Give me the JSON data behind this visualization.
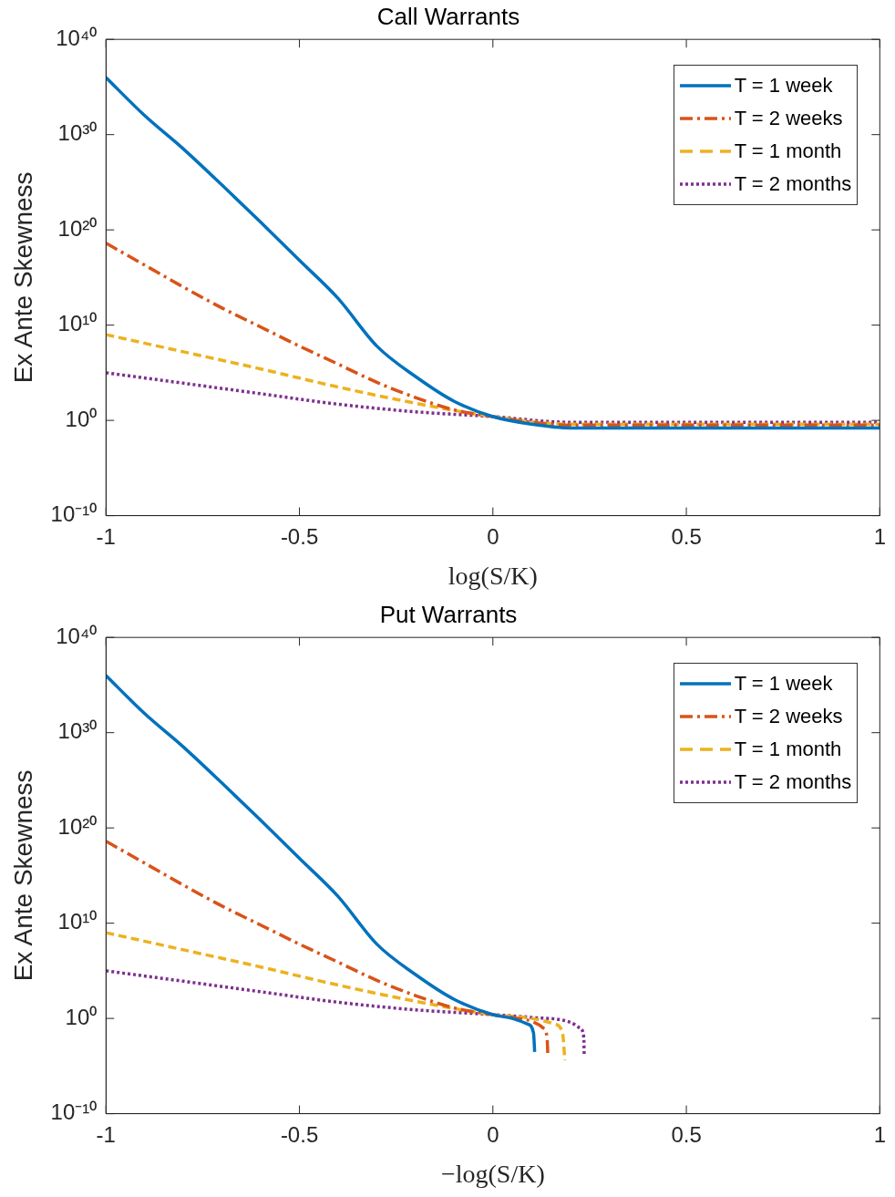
{
  "chart_data": [
    {
      "type": "line",
      "title": "Call Warrants",
      "xlabel": "log(S/K)",
      "ylabel": "Ex Ante Skewness",
      "log": "y",
      "legend": "top right",
      "grid": false,
      "xlim": [
        -1,
        1
      ],
      "xticks": [
        -1,
        -0.5,
        0,
        0.5,
        1
      ],
      "ylim": [
        1e-10,
        1e+40
      ],
      "yticks": [
        {
          "value": 1e-10,
          "label": "10⁻¹⁰"
        },
        {
          "value": 1,
          "label": "10⁰"
        },
        {
          "value": 10000000000.0,
          "label": "10¹⁰"
        },
        {
          "value": 1e+20,
          "label": "10²⁰"
        },
        {
          "value": 1e+30,
          "label": "10³⁰"
        },
        {
          "value": 1e+40,
          "label": "10⁴⁰"
        }
      ],
      "series": [
        {
          "name": "T = 1 week",
          "color": "#0072bd",
          "line_style": "solid",
          "x": [
            -1,
            -0.9,
            -0.8,
            -0.7,
            -0.6,
            -0.5,
            -0.4,
            -0.3,
            -0.2,
            -0.1,
            0,
            0.1,
            0.2,
            1
          ],
          "values": [
            1e+36,
            1e+32,
            3.16e+28,
            5e+24,
            6.3e+20,
            6.3e+16,
            6300000000000.0,
            63000000.0,
            40000.0,
            100,
            2.5,
            0.4,
            0.16,
            0.16
          ]
        },
        {
          "name": "T = 2 weeks",
          "color": "#d95319",
          "line_style": "dashdot",
          "x": [
            -1,
            -0.9,
            -0.8,
            -0.7,
            -0.6,
            -0.5,
            -0.4,
            -0.3,
            -0.2,
            -0.1,
            0,
            0.1,
            0.2,
            1
          ],
          "values": [
            4e+18,
            2e+16,
            100000000000000.0,
            630000000000.0,
            6300000000.0,
            63000000.0,
            800000.0,
            10000.0,
            250,
            12.6,
            2.5,
            0.63,
            0.32,
            0.32
          ]
        },
        {
          "name": "T = 1 month",
          "color": "#edb120",
          "line_style": "dashed",
          "x": [
            -1,
            -0.8,
            -0.6,
            -0.4,
            -0.2,
            0,
            0.2,
            1
          ],
          "values": [
            1000000000.0,
            16000000.0,
            250000.0,
            3160,
            63,
            2.5,
            0.4,
            0.4
          ]
        },
        {
          "name": "T = 2 months",
          "color": "#7e2f8e",
          "line_style": "dotted",
          "x": [
            -1,
            -0.8,
            -0.6,
            -0.4,
            -0.2,
            0,
            0.2,
            1
          ],
          "values": [
            100000.0,
            8000,
            630,
            50,
            8,
            2.5,
            0.63,
            0.63
          ]
        }
      ]
    },
    {
      "type": "line",
      "title": "Put Warrants",
      "xlabel": "−log(S/K)",
      "ylabel": "Ex Ante Skewness",
      "log": "y",
      "legend": "top right",
      "grid": false,
      "xlim": [
        -1,
        1
      ],
      "xticks": [
        -1,
        -0.5,
        0,
        0.5,
        1
      ],
      "ylim": [
        1e-10,
        1e+40
      ],
      "yticks": [
        {
          "value": 1e-10,
          "label": "10⁻¹⁰"
        },
        {
          "value": 1,
          "label": "10⁰"
        },
        {
          "value": 10000000000.0,
          "label": "10¹⁰"
        },
        {
          "value": 1e+20,
          "label": "10²⁰"
        },
        {
          "value": 1e+30,
          "label": "10³⁰"
        },
        {
          "value": 1e+40,
          "label": "10⁴⁰"
        }
      ],
      "series": [
        {
          "name": "T = 1 week",
          "color": "#0072bd",
          "line_style": "solid",
          "x": [
            -1,
            -0.9,
            -0.8,
            -0.7,
            -0.6,
            -0.5,
            -0.4,
            -0.3,
            -0.2,
            -0.1,
            0,
            0.05,
            0.09,
            0.105,
            0.108
          ],
          "values": [
            1e+36,
            1e+32,
            3.16e+28,
            5e+24,
            6.3e+20,
            6.3e+16,
            6300000000000.0,
            63000000.0,
            40000.0,
            100,
            2.5,
            1,
            0.25,
            0.03,
            0.0003
          ]
        },
        {
          "name": "T = 2 weeks",
          "color": "#d95319",
          "line_style": "dashdot",
          "x": [
            -1,
            -0.9,
            -0.8,
            -0.7,
            -0.6,
            -0.5,
            -0.4,
            -0.3,
            -0.2,
            -0.1,
            0,
            0.05,
            0.1,
            0.13,
            0.14,
            0.142
          ],
          "values": [
            4e+18,
            2e+16,
            100000000000000.0,
            630000000000.0,
            6300000000.0,
            63000000.0,
            800000.0,
            10000.0,
            250,
            12.6,
            2.5,
            1.26,
            0.5,
            0.1,
            0.01,
            0.00013
          ]
        },
        {
          "name": "T = 1 month",
          "color": "#edb120",
          "line_style": "dashed",
          "x": [
            -1,
            -0.8,
            -0.6,
            -0.4,
            -0.2,
            0,
            0.1,
            0.16,
            0.18,
            0.186
          ],
          "values": [
            1000000000.0,
            16000000.0,
            250000.0,
            3160,
            63,
            2.5,
            1,
            0.25,
            0.03,
            4e-05
          ]
        },
        {
          "name": "T = 2 months",
          "color": "#7e2f8e",
          "line_style": "dotted",
          "x": [
            -1,
            -0.8,
            -0.6,
            -0.4,
            -0.2,
            0,
            0.1,
            0.2,
            0.225,
            0.235,
            0.236
          ],
          "values": [
            100000.0,
            8000,
            630,
            50,
            8,
            2.5,
            1.26,
            0.4,
            0.1,
            0.01,
            0.00013
          ]
        }
      ]
    }
  ]
}
